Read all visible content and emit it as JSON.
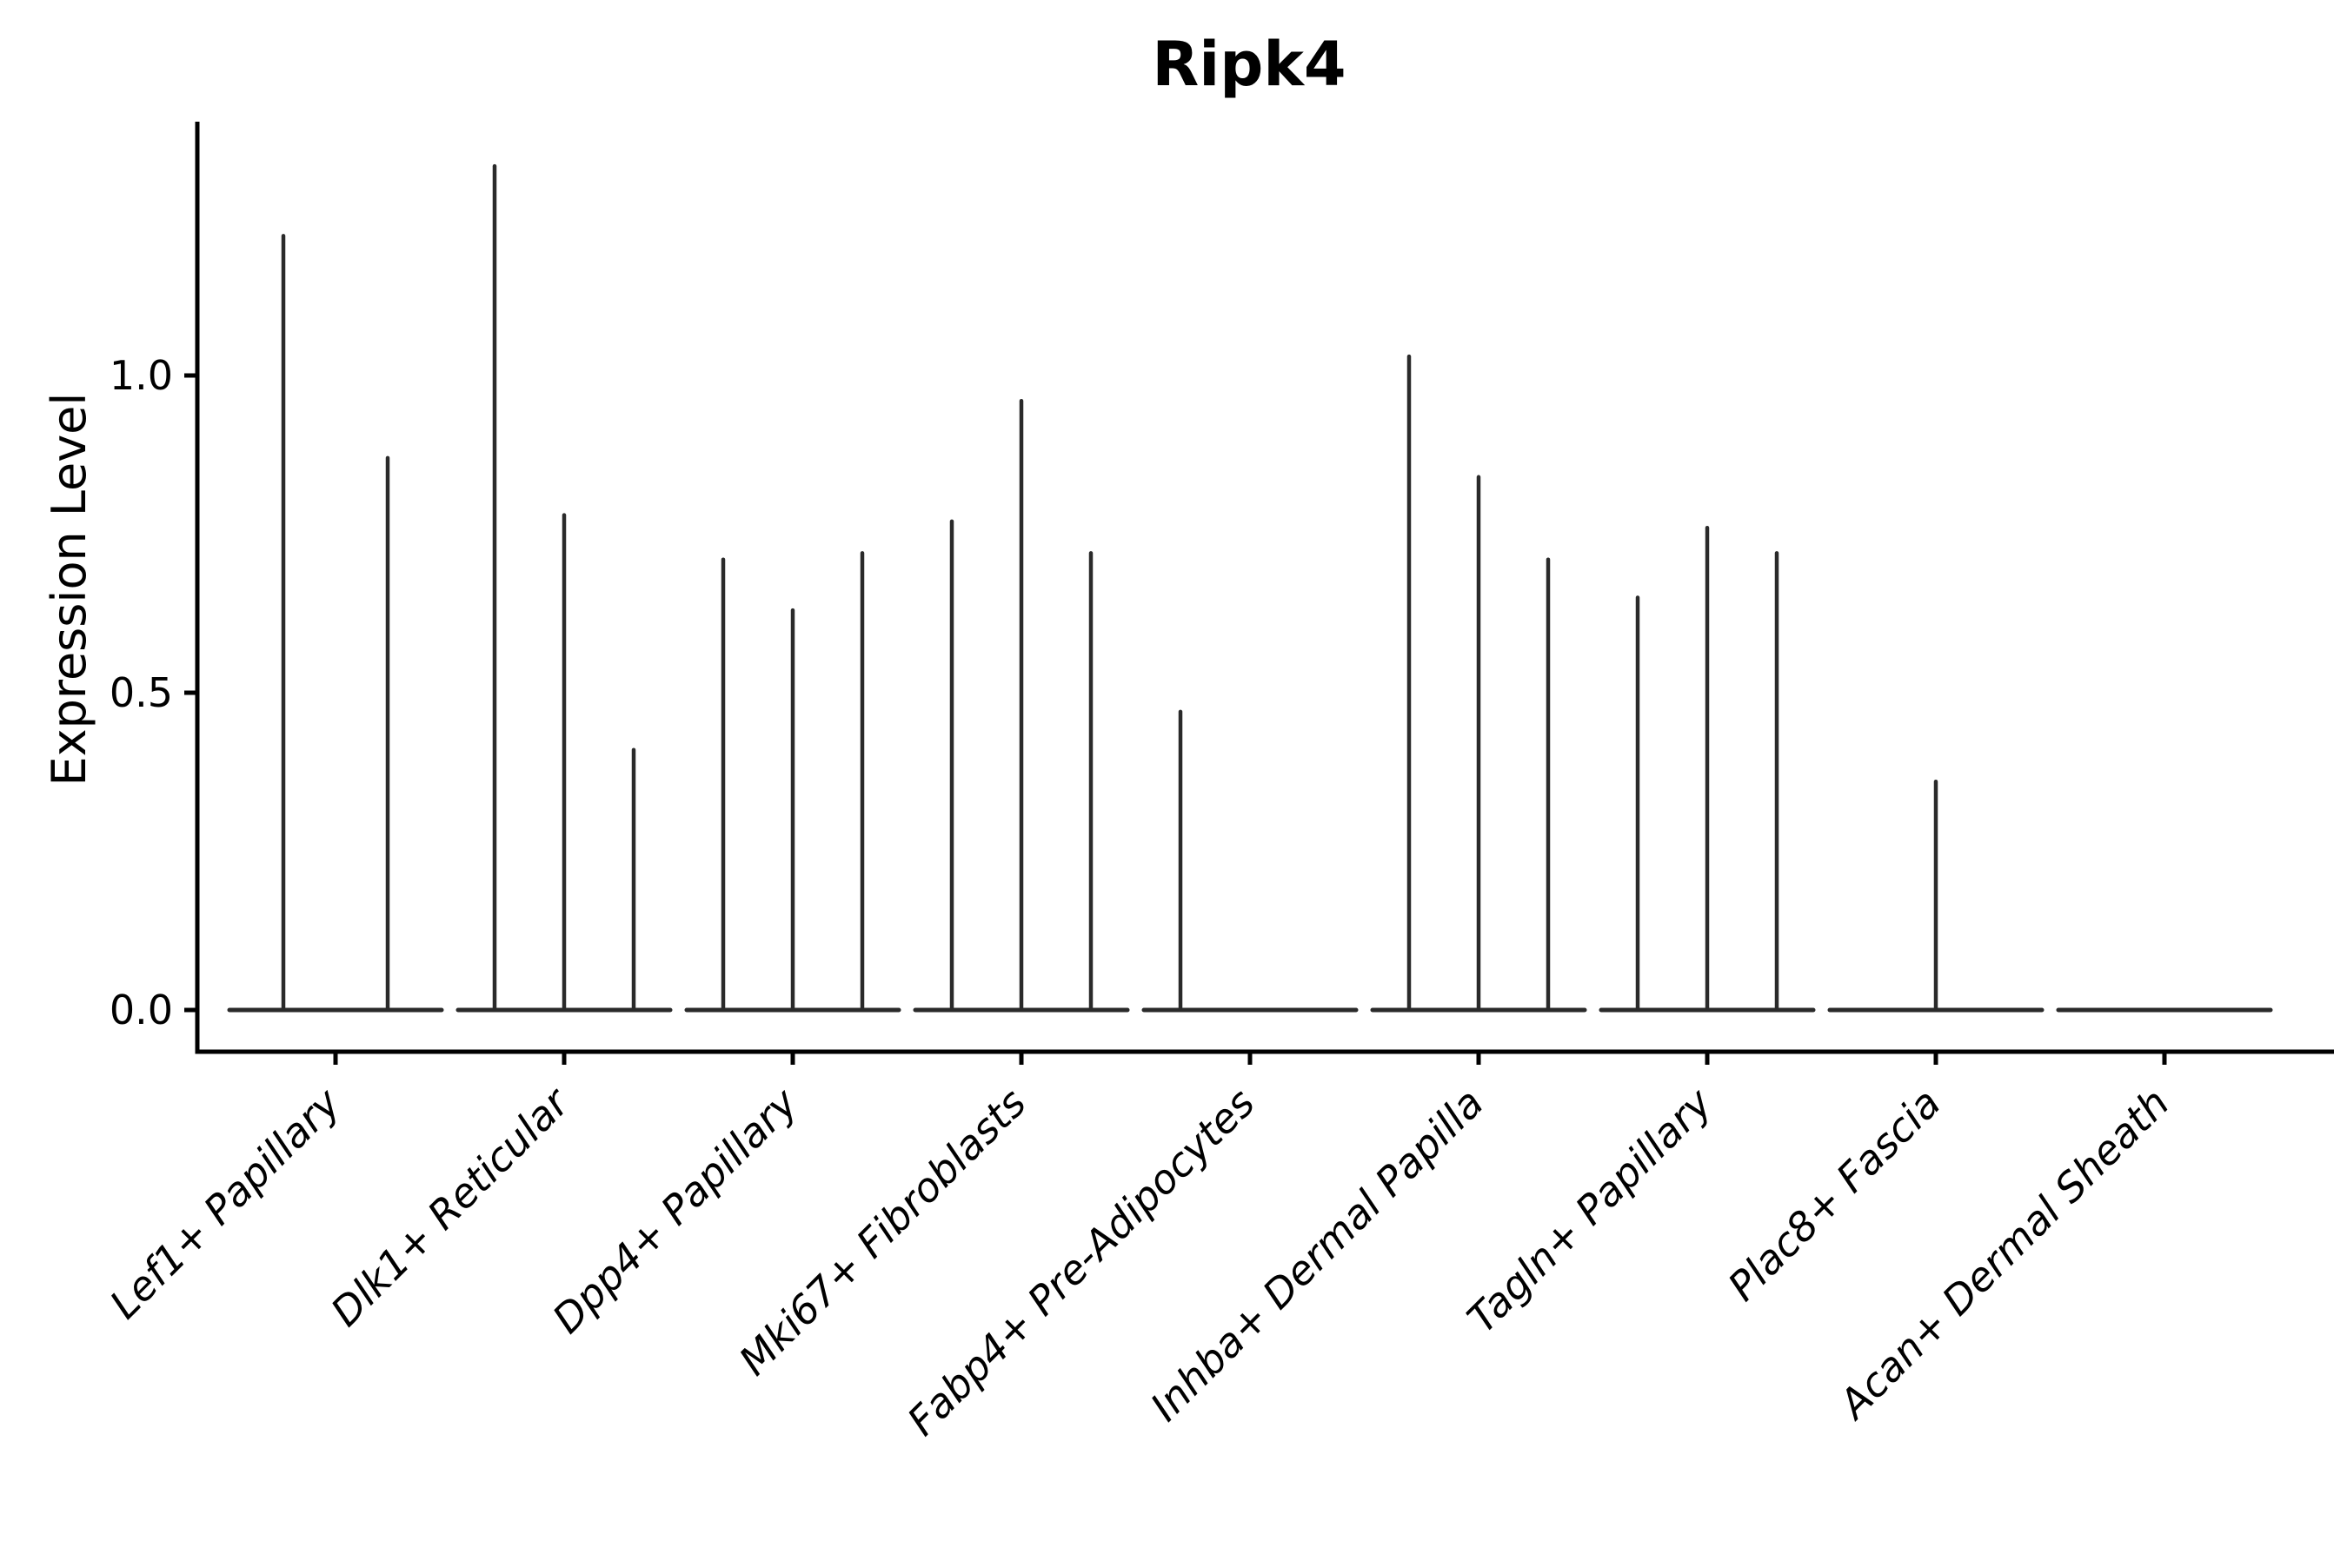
{
  "chart_data": {
    "type": "violin",
    "title": "Ripk4",
    "ylabel": "Expression Level",
    "xlabel": "",
    "yticks": [
      0.0,
      0.5,
      1.0
    ],
    "ytick_labels": [
      "0.0",
      "0.5",
      "1.0"
    ],
    "ylim": [
      -0.07,
      1.4
    ],
    "grid": false,
    "legend": "none",
    "colors": {
      "violin_line": "#2a2a2a",
      "axis": "#000000",
      "background": "#ffffff"
    },
    "categories": [
      "Lef1+ Papillary",
      "Dlk1+ Reticular",
      "Dpp4+ Papillary",
      "Mki67+ Fibroblasts",
      "Fabp4+ Pre-Adipocytes",
      "Inhba+ Dermal Papilla",
      "Tagln+ Papillary",
      "Plac8+ Fascia",
      "Acan+ Dermal Sheath"
    ],
    "series": [
      {
        "category": "Lef1+ Papillary",
        "baseline_value": 0.0,
        "spikes": [
          {
            "offset": -60,
            "value": 1.22
          },
          {
            "offset": 60,
            "value": 0.87
          }
        ]
      },
      {
        "category": "Dlk1+ Reticular",
        "baseline_value": 0.0,
        "spikes": [
          {
            "offset": -80,
            "value": 1.33
          },
          {
            "offset": 0,
            "value": 0.78
          },
          {
            "offset": 80,
            "value": 0.41
          }
        ]
      },
      {
        "category": "Dpp4+ Papillary",
        "baseline_value": 0.0,
        "spikes": [
          {
            "offset": -80,
            "value": 0.71
          },
          {
            "offset": 0,
            "value": 0.63
          },
          {
            "offset": 80,
            "value": 0.72
          }
        ]
      },
      {
        "category": "Mki67+ Fibroblasts",
        "baseline_value": 0.0,
        "spikes": [
          {
            "offset": -80,
            "value": 0.77
          },
          {
            "offset": 0,
            "value": 0.96
          },
          {
            "offset": 80,
            "value": 0.72
          }
        ]
      },
      {
        "category": "Fabp4+ Pre-Adipocytes",
        "baseline_value": 0.0,
        "spikes": [
          {
            "offset": -80,
            "value": 0.47
          }
        ]
      },
      {
        "category": "Inhba+ Dermal Papilla",
        "baseline_value": 0.0,
        "spikes": [
          {
            "offset": -80,
            "value": 1.03
          },
          {
            "offset": 0,
            "value": 0.84
          },
          {
            "offset": 80,
            "value": 0.71
          }
        ]
      },
      {
        "category": "Tagln+ Papillary",
        "baseline_value": 0.0,
        "spikes": [
          {
            "offset": -80,
            "value": 0.65
          },
          {
            "offset": 0,
            "value": 0.76
          },
          {
            "offset": 80,
            "value": 0.72
          }
        ]
      },
      {
        "category": "Plac8+ Fascia",
        "baseline_value": 0.0,
        "spikes": [
          {
            "offset": 0,
            "value": 0.36
          }
        ]
      },
      {
        "category": "Acan+ Dermal Sheath",
        "baseline_value": 0.0,
        "spikes": []
      }
    ]
  }
}
